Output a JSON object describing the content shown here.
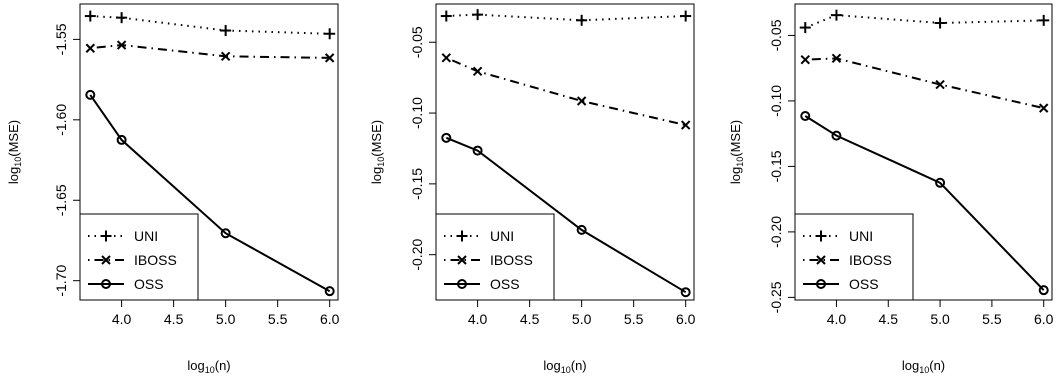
{
  "colors": {
    "line": "#000000",
    "background": "#ffffff"
  },
  "legend_markers": {
    "UNI": "plus",
    "IBOSS": "cross",
    "OSS": "circle"
  },
  "chart_data": [
    {
      "type": "line",
      "xlabel": "log10(n)",
      "ylabel": "log10(MSE)",
      "x_ticks": [
        "4.0",
        "4.5",
        "5.0",
        "5.5",
        "6.0"
      ],
      "y_ticks": [
        "-1.55",
        "-1.60",
        "-1.65",
        "-1.70"
      ],
      "xlim": [
        3.6,
        6.08
      ],
      "ylim": [
        -1.712,
        -1.528
      ],
      "grid": false,
      "legend_position": "bottom-left",
      "series": [
        {
          "name": "UNI",
          "line_style": "dotted",
          "marker": "plus",
          "x": [
            3.699,
            4.0,
            5.0,
            6.0
          ],
          "y": [
            -1.5355,
            -1.5365,
            -1.5445,
            -1.5465
          ]
        },
        {
          "name": "IBOSS",
          "line_style": "dashdot",
          "marker": "cross",
          "x": [
            3.699,
            4.0,
            5.0,
            6.0
          ],
          "y": [
            -1.5555,
            -1.5535,
            -1.5605,
            -1.5615
          ]
        },
        {
          "name": "OSS",
          "line_style": "solid",
          "marker": "circle",
          "x": [
            3.699,
            4.0,
            5.0,
            6.0
          ],
          "y": [
            -1.5845,
            -1.6125,
            -1.6705,
            -1.7065
          ]
        }
      ]
    },
    {
      "type": "line",
      "xlabel": "log10(n)",
      "ylabel": "log10(MSE)",
      "x_ticks": [
        "4.0",
        "4.5",
        "5.0",
        "5.5",
        "6.0"
      ],
      "y_ticks": [
        "-0.05",
        "-0.10",
        "-0.15",
        "-0.20"
      ],
      "xlim": [
        3.6,
        6.08
      ],
      "ylim": [
        -0.232,
        -0.023
      ],
      "grid": false,
      "legend_position": "bottom-left",
      "series": [
        {
          "name": "UNI",
          "line_style": "dotted",
          "marker": "plus",
          "x": [
            3.699,
            4.0,
            5.0,
            6.0
          ],
          "y": [
            -0.0315,
            -0.0305,
            -0.0345,
            -0.0315
          ]
        },
        {
          "name": "IBOSS",
          "line_style": "dashdot",
          "marker": "cross",
          "x": [
            3.699,
            4.0,
            5.0,
            6.0
          ],
          "y": [
            -0.061,
            -0.0705,
            -0.0915,
            -0.1085
          ]
        },
        {
          "name": "OSS",
          "line_style": "solid",
          "marker": "circle",
          "x": [
            3.699,
            4.0,
            5.0,
            6.0
          ],
          "y": [
            -0.1175,
            -0.1265,
            -0.1825,
            -0.2265
          ]
        }
      ]
    },
    {
      "type": "line",
      "xlabel": "log10(n)",
      "ylabel": "log10(MSE)",
      "x_ticks": [
        "4.0",
        "4.5",
        "5.0",
        "5.5",
        "6.0"
      ],
      "y_ticks": [
        "-0.05",
        "-0.10",
        "-0.15",
        "-0.20",
        "-0.25"
      ],
      "xlim": [
        3.6,
        6.08
      ],
      "ylim": [
        -0.252,
        -0.026
      ],
      "grid": false,
      "legend_position": "bottom-left",
      "series": [
        {
          "name": "UNI",
          "line_style": "dotted",
          "marker": "plus",
          "x": [
            3.699,
            4.0,
            5.0,
            6.0
          ],
          "y": [
            -0.044,
            -0.0345,
            -0.0405,
            -0.0385
          ]
        },
        {
          "name": "IBOSS",
          "line_style": "dashdot",
          "marker": "cross",
          "x": [
            3.699,
            4.0,
            5.0,
            6.0
          ],
          "y": [
            -0.0685,
            -0.0675,
            -0.0875,
            -0.1055
          ]
        },
        {
          "name": "OSS",
          "line_style": "solid",
          "marker": "circle",
          "x": [
            3.699,
            4.0,
            5.0,
            6.0
          ],
          "y": [
            -0.1115,
            -0.1265,
            -0.1625,
            -0.2445
          ]
        }
      ]
    }
  ]
}
